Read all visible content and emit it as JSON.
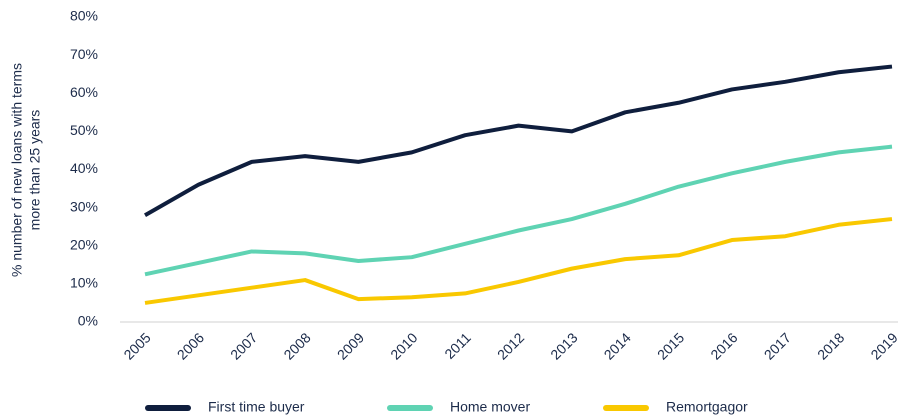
{
  "chart_data": {
    "type": "line",
    "ylabel": [
      "% number of new loans with terms",
      "more than 25 years"
    ],
    "categories": [
      "2005",
      "2006",
      "2007",
      "2008",
      "2009",
      "2010",
      "2011",
      "2012",
      "2013",
      "2014",
      "2015",
      "2016",
      "2017",
      "2018",
      "2019"
    ],
    "series": [
      {
        "name": "First time buyer",
        "color": "#0f1e3d",
        "values": [
          28,
          36,
          42,
          43.5,
          42,
          44.5,
          49,
          51.5,
          50,
          55,
          57.5,
          61,
          63,
          65.5,
          67
        ]
      },
      {
        "name": "Home mover",
        "color": "#5fd3b3",
        "values": [
          12.5,
          15.5,
          18.5,
          18,
          16,
          17,
          20.5,
          24,
          27,
          31,
          35.5,
          39,
          42,
          44.5,
          46
        ]
      },
      {
        "name": "Remortgagor",
        "color": "#f9c800",
        "values": [
          5,
          7,
          9,
          11,
          6,
          6.5,
          7.5,
          10.5,
          14,
          16.5,
          17.5,
          21.5,
          22.5,
          25.5,
          27
        ]
      }
    ],
    "ylim": [
      0,
      80
    ],
    "yticks": [
      {
        "value": 0,
        "label": "0%"
      },
      {
        "value": 10,
        "label": "10%"
      },
      {
        "value": 20,
        "label": "20%"
      },
      {
        "value": 30,
        "label": "30%"
      },
      {
        "value": 40,
        "label": "40%"
      },
      {
        "value": 50,
        "label": "50%"
      },
      {
        "value": 60,
        "label": "60%"
      },
      {
        "value": 70,
        "label": "70%"
      },
      {
        "value": 80,
        "label": "80%"
      }
    ],
    "legend": "bottom"
  }
}
